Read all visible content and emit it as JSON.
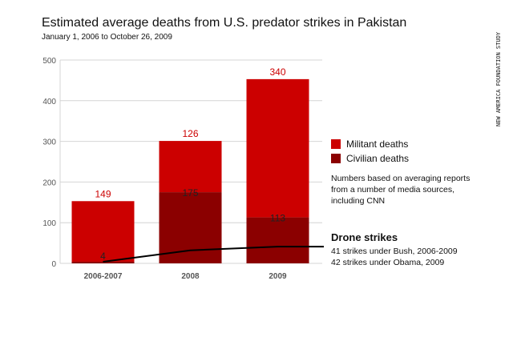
{
  "colors": {
    "militant": "#cc0000",
    "civilian": "#8b0000",
    "line": "#000000",
    "grid": "#d4d4d4",
    "militant_label": "#cc0000",
    "civilian_label": "#222222"
  },
  "chart_data": {
    "type": "bar",
    "stacked": true,
    "title": "Estimated average deaths from U.S. predator strikes in Pakistan",
    "subtitle": "January 1, 2006 to October 26, 2009",
    "categories": [
      "2006-2007",
      "2008",
      "2009"
    ],
    "series": [
      {
        "name": "Civilian deaths",
        "values": [
          4,
          175,
          113
        ]
      },
      {
        "name": "Militant deaths",
        "values": [
          149,
          126,
          340
        ]
      }
    ],
    "line_series": {
      "name": "Drone strikes",
      "values": [
        4,
        32,
        41
      ],
      "end_value": 41
    },
    "ylim": [
      0,
      500
    ],
    "yticks": [
      "0",
      "100",
      "200",
      "300",
      "400",
      "500"
    ],
    "ytick_values": [
      0,
      100,
      200,
      300,
      400,
      500
    ],
    "grid": true,
    "legend": {
      "position": "right",
      "entries": [
        "Militant deaths",
        "Civilian deaths"
      ]
    },
    "note": "Numbers based on averaging reports from a number of media sources, including CNN",
    "annotation": {
      "title": "Drone strikes",
      "lines": [
        "41 strikes under Bush, 2006-2009",
        "42 strikes under Obama, 2009"
      ]
    },
    "source": "NEW AMERICA FOUNDATION STUDY"
  }
}
